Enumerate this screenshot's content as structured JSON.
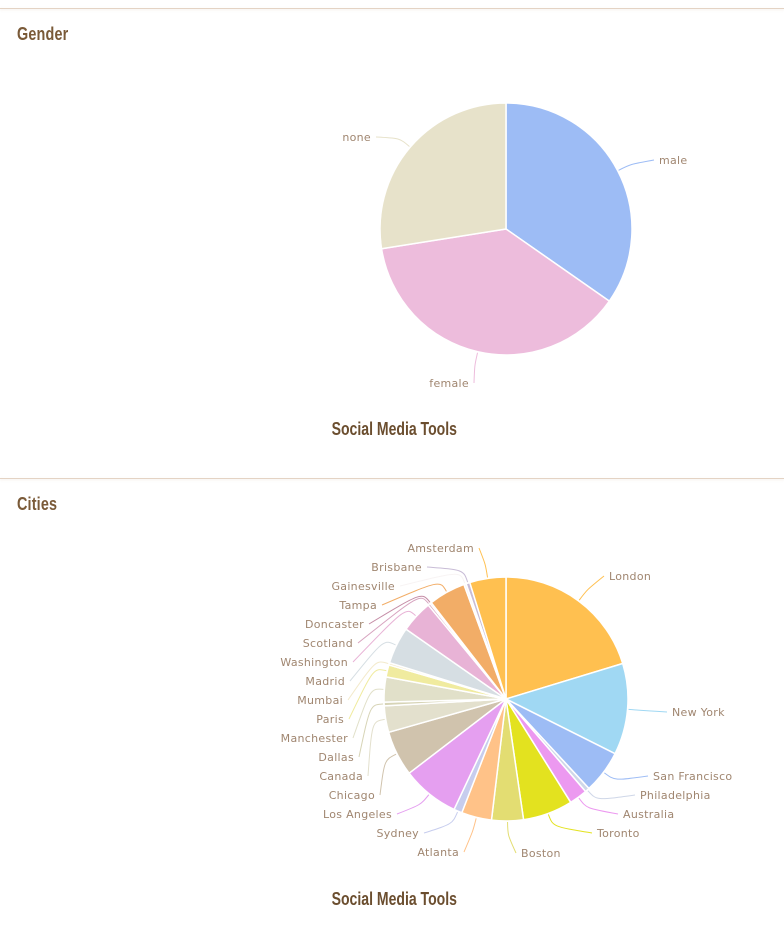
{
  "sections": [
    {
      "title": "Gender"
    },
    {
      "title": "Cities"
    }
  ],
  "chart_data": [
    {
      "type": "pie",
      "title": "Social Media Tools",
      "labels": [
        "male",
        "female",
        "none"
      ],
      "values": [
        34.7,
        37.8,
        27.5
      ],
      "colors": [
        "#9dbcf5",
        "#edbcdc",
        "#e7e2ca"
      ]
    },
    {
      "type": "pie",
      "title": "Social Media Tools",
      "labels": [
        "London",
        "New York",
        "San Francisco",
        "Philadelphia",
        "Australia",
        "Toronto",
        "Boston",
        "Atlanta",
        "Sydney",
        "Los Angeles",
        "Chicago",
        "Canada",
        "Dallas",
        "Manchester",
        "Paris",
        "Mumbai",
        "Madrid",
        "Washington",
        "Scotland",
        "Doncaster",
        "Tampa",
        "Gainesville",
        "Brisbane",
        "Amsterdam"
      ],
      "values": [
        20.3,
        12.1,
        5.7,
        0.6,
        2.4,
        6.6,
        4.2,
        4.0,
        1.1,
        7.6,
        6.0,
        3.5,
        0.5,
        3.3,
        1.6,
        0.3,
        4.9,
        4.3,
        0.3,
        0.2,
        4.9,
        0.3,
        0.5,
        4.8
      ],
      "colors": [
        "#ffc050",
        "#a0d8f3",
        "#9dbcf5",
        "#cfd7e8",
        "#ec99f0",
        "#e3e21f",
        "#e3dd72",
        "#ffc288",
        "#c7cdee",
        "#e59ff0",
        "#d0c3ad",
        "#e3e0cd",
        "#d7d4b6",
        "#e1e0c9",
        "#f0eb9f",
        "#f3eacb",
        "#d6dee3",
        "#e8b3d6",
        "#d7a3bf",
        "#c58da6",
        "#f2ad67",
        "#f8f4f4",
        "#c8bcd6",
        "#ffc050"
      ]
    }
  ]
}
